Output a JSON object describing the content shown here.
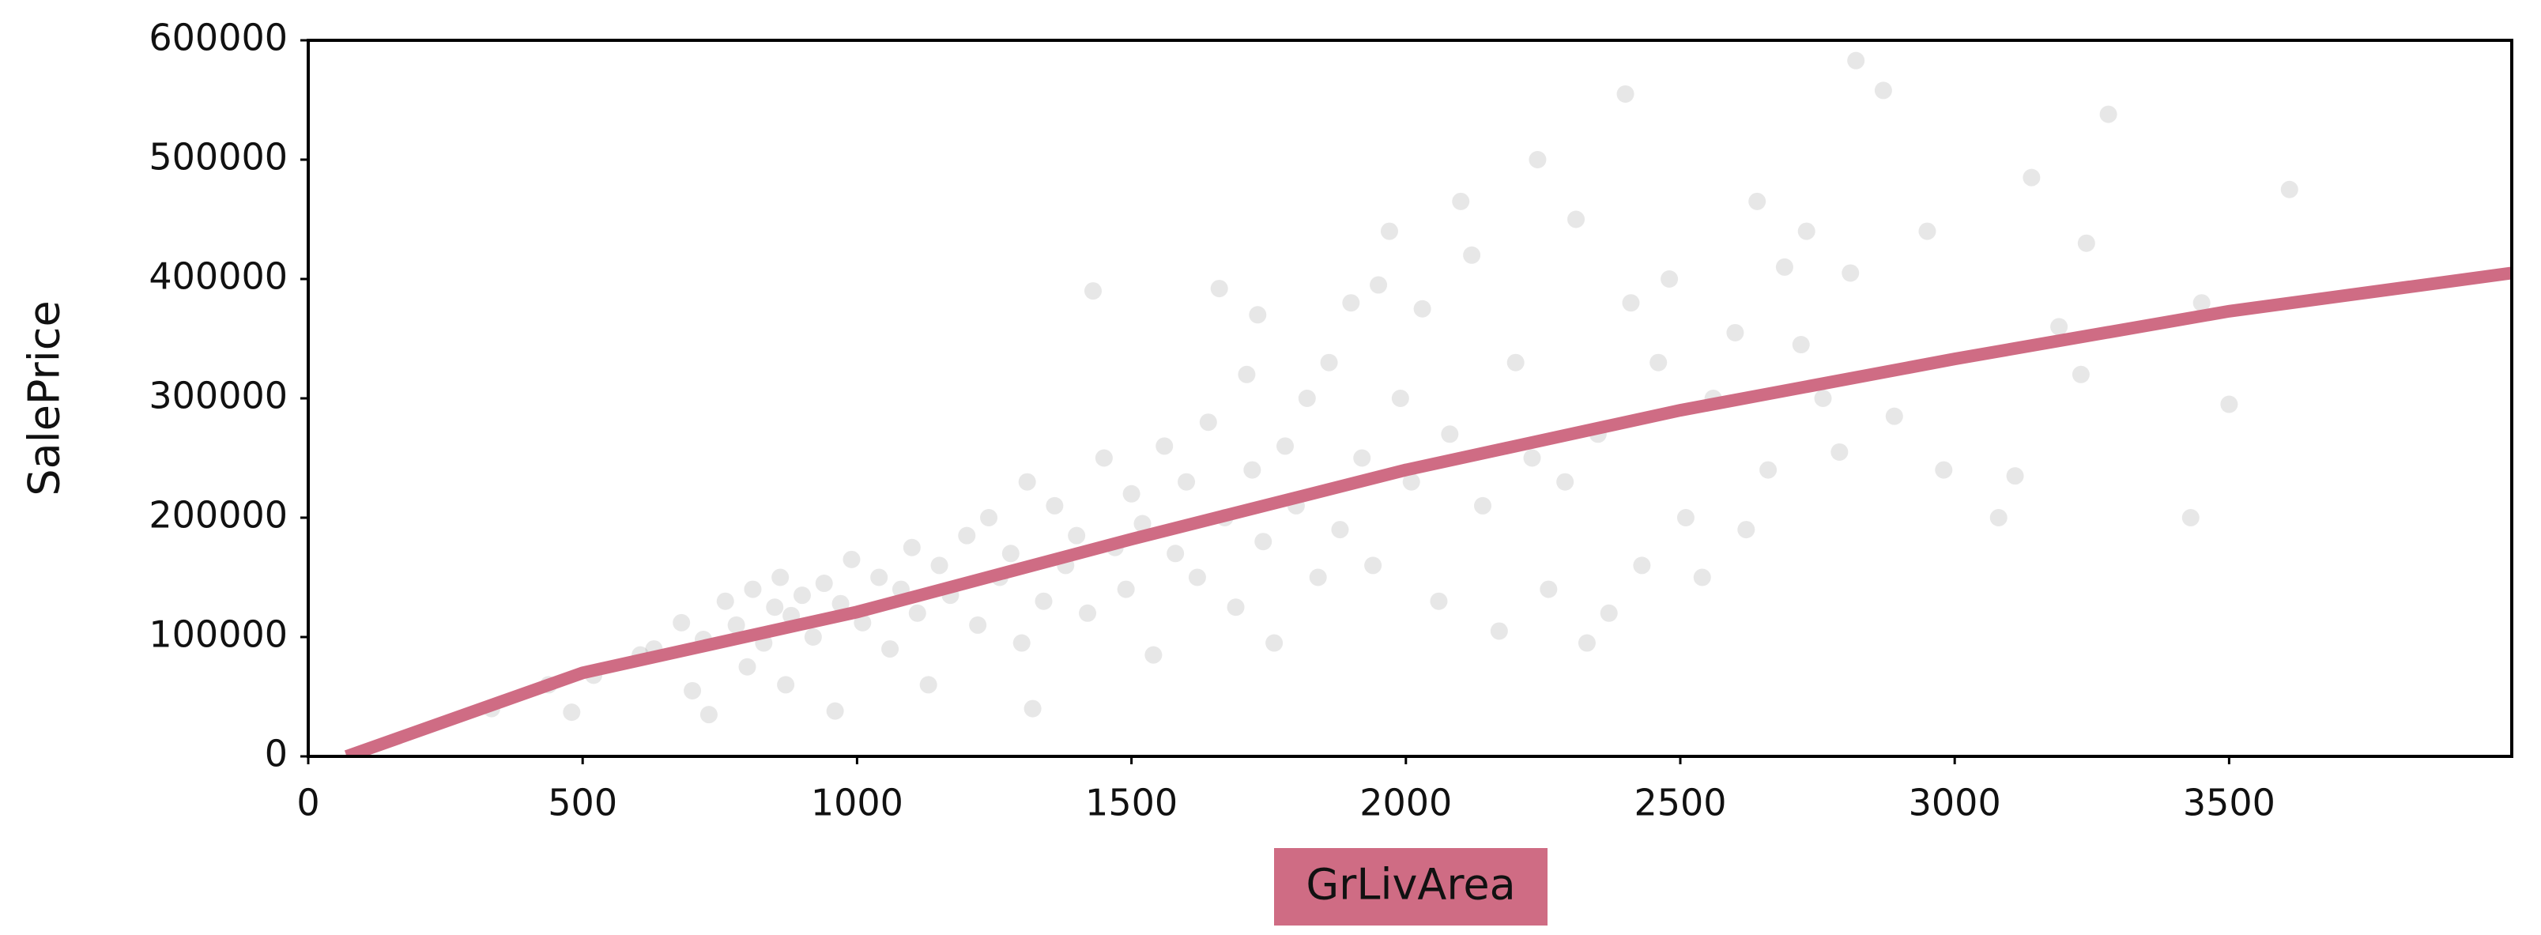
{
  "chart_data": {
    "type": "scatter",
    "xlabel": "GrLivArea",
    "ylabel": "SalePrice",
    "xlabel_background": "#cf6c84",
    "xlim": [
      0,
      4015
    ],
    "ylim": [
      0,
      600000
    ],
    "xticks": [
      0,
      500,
      1000,
      1500,
      2000,
      2500,
      3000,
      3500
    ],
    "yticks": [
      0,
      100000,
      200000,
      300000,
      400000,
      500000,
      600000
    ],
    "series": [
      {
        "type": "scatter",
        "color": "#7a7a7a",
        "x": [
          334,
          438,
          480,
          520,
          605,
          630,
          680,
          700,
          720,
          730,
          760,
          780,
          800,
          810,
          830,
          850,
          860,
          870,
          880,
          900,
          920,
          940,
          960,
          970,
          990,
          1010,
          1040,
          1060,
          1080,
          1100,
          1110,
          1130,
          1150,
          1170,
          1200,
          1220,
          1240,
          1260,
          1280,
          1300,
          1310,
          1320,
          1340,
          1360,
          1380,
          1400,
          1420,
          1430,
          1450,
          1470,
          1490,
          1500,
          1520,
          1540,
          1560,
          1580,
          1600,
          1620,
          1640,
          1660,
          1670,
          1690,
          1710,
          1720,
          1730,
          1740,
          1760,
          1780,
          1800,
          1820,
          1840,
          1860,
          1880,
          1900,
          1920,
          1940,
          1950,
          1970,
          1990,
          2010,
          2030,
          2060,
          2080,
          2100,
          2120,
          2140,
          2170,
          2200,
          2230,
          2240,
          2260,
          2290,
          2310,
          2330,
          2350,
          2370,
          2400,
          2410,
          2430,
          2460,
          2480,
          2510,
          2540,
          2560,
          2600,
          2620,
          2640,
          2660,
          2690,
          2720,
          2730,
          2760,
          2790,
          2810,
          2820,
          2870,
          2890,
          2950,
          2980,
          3080,
          3110,
          3140,
          3190,
          3230,
          3240,
          3280,
          3430,
          3450,
          3500,
          3610
        ],
        "values": [
          40000,
          60000,
          37000,
          68000,
          85000,
          90000,
          112000,
          55000,
          98000,
          35000,
          130000,
          110000,
          75000,
          140000,
          95000,
          125000,
          150000,
          60000,
          118000,
          135000,
          100000,
          145000,
          38000,
          128000,
          165000,
          112000,
          150000,
          90000,
          140000,
          175000,
          120000,
          60000,
          160000,
          135000,
          185000,
          110000,
          200000,
          150000,
          170000,
          95000,
          230000,
          40000,
          130000,
          210000,
          160000,
          185000,
          120000,
          390000,
          250000,
          175000,
          140000,
          220000,
          195000,
          85000,
          260000,
          170000,
          230000,
          150000,
          280000,
          392000,
          200000,
          125000,
          320000,
          240000,
          370000,
          180000,
          95000,
          260000,
          210000,
          300000,
          150000,
          330000,
          190000,
          380000,
          250000,
          160000,
          395000,
          440000,
          300000,
          230000,
          375000,
          130000,
          270000,
          465000,
          420000,
          210000,
          105000,
          330000,
          250000,
          500000,
          140000,
          230000,
          450000,
          95000,
          270000,
          120000,
          555000,
          380000,
          160000,
          330000,
          400000,
          200000,
          150000,
          300000,
          355000,
          190000,
          465000,
          240000,
          410000,
          345000,
          440000,
          300000,
          255000,
          405000,
          583000,
          558000,
          285000,
          440000,
          240000,
          200000,
          235000,
          485000,
          360000,
          320000,
          430000,
          538000,
          200000,
          380000,
          295000,
          475000
        ]
      },
      {
        "type": "line",
        "color": "#cf6c84",
        "x": [
          70,
          500,
          1000,
          1500,
          2000,
          2500,
          3000,
          3500,
          4015
        ],
        "values": [
          0,
          70000,
          121000,
          182000,
          240000,
          290000,
          333000,
          373000,
          405000
        ]
      }
    ]
  }
}
